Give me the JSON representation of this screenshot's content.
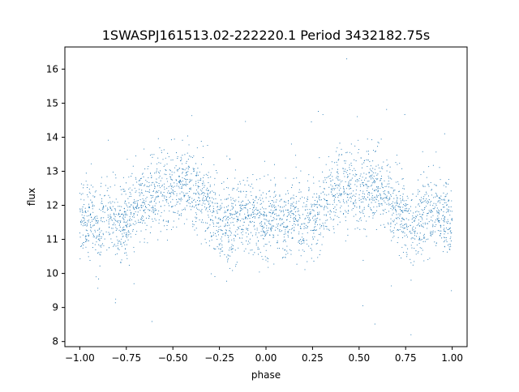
{
  "chart_data": {
    "type": "scatter",
    "title": "1SWASPJ161513.02-222220.1 Period 3432182.75s",
    "xlabel": "phase",
    "ylabel": "flux",
    "xlim": [
      -1.08,
      1.08
    ],
    "ylim": [
      7.85,
      16.65
    ],
    "xticks": [
      -1.0,
      -0.75,
      -0.5,
      -0.25,
      0.0,
      0.25,
      0.5,
      0.75,
      1.0
    ],
    "xtick_labels": [
      "−1.00",
      "−0.75",
      "−0.50",
      "−0.25",
      "0.00",
      "0.25",
      "0.50",
      "0.75",
      "1.00"
    ],
    "yticks": [
      8,
      9,
      10,
      11,
      12,
      13,
      14,
      15,
      16
    ],
    "ytick_labels": [
      "8",
      "9",
      "10",
      "11",
      "12",
      "13",
      "14",
      "15",
      "16"
    ],
    "grid": false,
    "legend": "none",
    "marker_color": "#1f77b4",
    "series": [
      {
        "phase_range": [
          -1.0,
          1.0
        ],
        "period_in_phase": 1.0,
        "flux_median": 12.0,
        "flux_range": [
          8.2,
          16.3
        ],
        "profile": [
          {
            "x": 0.0,
            "y": 11.5
          },
          {
            "x": 0.05,
            "y": 11.7
          },
          {
            "x": 0.1,
            "y": 11.2
          },
          {
            "x": 0.15,
            "y": 11.9
          },
          {
            "x": 0.2,
            "y": 11.4
          },
          {
            "x": 0.25,
            "y": 11.6
          },
          {
            "x": 0.3,
            "y": 11.9
          },
          {
            "x": 0.35,
            "y": 12.2
          },
          {
            "x": 0.4,
            "y": 12.5
          },
          {
            "x": 0.45,
            "y": 12.6
          },
          {
            "x": 0.5,
            "y": 12.4
          },
          {
            "x": 0.55,
            "y": 12.6
          },
          {
            "x": 0.6,
            "y": 12.5
          },
          {
            "x": 0.65,
            "y": 12.3
          },
          {
            "x": 0.7,
            "y": 11.9
          },
          {
            "x": 0.75,
            "y": 11.5
          },
          {
            "x": 0.8,
            "y": 11.5
          },
          {
            "x": 0.85,
            "y": 11.6
          },
          {
            "x": 0.9,
            "y": 11.8
          },
          {
            "x": 0.95,
            "y": 11.6
          },
          {
            "x": 1.0,
            "y": 11.5
          }
        ]
      }
    ]
  }
}
